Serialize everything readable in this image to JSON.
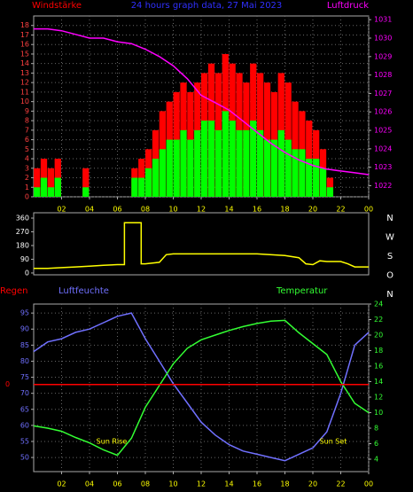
{
  "chart_data": [
    {
      "type": "bar",
      "title": "24 hours graph data, 27 Mai 2023",
      "ylabel": "Windstärke",
      "y2label": "Luftdruck",
      "xlim": [
        0,
        24
      ],
      "xticks": [
        {
          "value": 2,
          "label": "02"
        },
        {
          "value": 4,
          "label": "04"
        },
        {
          "value": 6,
          "label": "06"
        },
        {
          "value": 8,
          "label": "08"
        },
        10,
        12,
        14,
        16,
        18,
        20,
        22,
        {
          "value": 24,
          "label": "00"
        }
      ],
      "ylim": [
        0,
        19
      ],
      "yticks": [
        0,
        1,
        2,
        3,
        4,
        5,
        6,
        7,
        8,
        9,
        10,
        11,
        12,
        13,
        14,
        15,
        16,
        17,
        18
      ],
      "y2lim": [
        1021.4,
        1031.2
      ],
      "y2ticks": [
        1022,
        1023,
        1024,
        1025,
        1026,
        1027,
        1028,
        1029,
        1030,
        1031
      ],
      "grid": true,
      "series": [
        {
          "color": "#ff0000",
          "x": [
            0,
            0.5,
            1,
            1.5,
            2,
            2.5,
            3,
            3.5,
            4,
            4.5,
            5,
            5.5,
            6,
            6.5,
            7,
            7.5,
            8,
            8.5,
            9,
            9.5,
            10,
            10.5,
            11,
            11.5,
            12,
            12.5,
            13,
            13.5,
            14,
            14.5,
            15,
            15.5,
            16,
            16.5,
            17,
            17.5,
            18,
            18.5,
            19,
            19.5,
            20,
            20.5,
            21,
            21.5,
            22,
            22.5,
            23,
            23.5
          ],
          "values": [
            3,
            4,
            3,
            4,
            0,
            0,
            0,
            3,
            0,
            0,
            0,
            0,
            0,
            0,
            3,
            4,
            5,
            7,
            9,
            10,
            11,
            12,
            11,
            12,
            13,
            14,
            13,
            15,
            14,
            13,
            12,
            14,
            13,
            12,
            11,
            13,
            12,
            10,
            9,
            8,
            7,
            5,
            2,
            0,
            0,
            0,
            0,
            0
          ]
        },
        {
          "color": "#00ff00",
          "x": [
            0,
            0.5,
            1,
            1.5,
            2,
            2.5,
            3,
            3.5,
            4,
            4.5,
            5,
            5.5,
            6,
            6.5,
            7,
            7.5,
            8,
            8.5,
            9,
            9.5,
            10,
            10.5,
            11,
            11.5,
            12,
            12.5,
            13,
            13.5,
            14,
            14.5,
            15,
            15.5,
            16,
            16.5,
            17,
            17.5,
            18,
            18.5,
            19,
            19.5,
            20,
            20.5,
            21,
            21.5,
            22,
            22.5,
            23,
            23.5
          ],
          "values": [
            1,
            2,
            1,
            2,
            0,
            0,
            0,
            1,
            0,
            0,
            0,
            0,
            0,
            0,
            2,
            2,
            3,
            4,
            5,
            6,
            6,
            7,
            6,
            7,
            8,
            8,
            7,
            9,
            8,
            7,
            7,
            8,
            7,
            6,
            6,
            7,
            6,
            5,
            5,
            4,
            4,
            3,
            1,
            0,
            0,
            0,
            0,
            0
          ]
        },
        {
          "type": "line",
          "axis": "y2",
          "color": "#ff00ff",
          "x": [
            0,
            1,
            2,
            3,
            4,
            5,
            6,
            7,
            8,
            9,
            10,
            11,
            12,
            13,
            14,
            15,
            16,
            17,
            18,
            19,
            20,
            21,
            22,
            23,
            24
          ],
          "values": [
            1030.5,
            1030.5,
            1030.4,
            1030.2,
            1030.0,
            1030.0,
            1029.8,
            1029.7,
            1029.4,
            1029.0,
            1028.5,
            1027.8,
            1026.9,
            1026.5,
            1026.1,
            1025.5,
            1024.9,
            1024.3,
            1023.8,
            1023.4,
            1023.1,
            1022.9,
            1022.8,
            1022.7,
            1022.6
          ]
        }
      ]
    },
    {
      "type": "line",
      "xlim": [
        0,
        24
      ],
      "ylim": [
        -12,
        395
      ],
      "yticks": [
        0,
        90,
        180,
        270,
        360
      ],
      "y2labels": [
        "N",
        "W",
        "S",
        "O",
        "N"
      ],
      "grid": false,
      "series": [
        {
          "color": "#ffff00",
          "x": [
            0,
            1,
            2,
            3,
            4,
            5,
            6,
            6.5,
            6.5,
            7.7,
            7.7,
            8,
            9,
            9.5,
            10,
            12,
            16,
            18,
            19,
            19.5,
            20,
            20.5,
            21,
            22,
            22.5,
            23,
            24
          ],
          "values": [
            30,
            30,
            35,
            40,
            45,
            50,
            55,
            55,
            330,
            330,
            60,
            60,
            70,
            120,
            125,
            125,
            125,
            115,
            100,
            60,
            55,
            80,
            75,
            75,
            60,
            40,
            40
          ]
        }
      ]
    },
    {
      "type": "line",
      "ylabel": "Luftfeuchte",
      "y2label": "Temperatur",
      "y3label": "Regen",
      "xlim": [
        0,
        24
      ],
      "xticks": [
        {
          "value": 2,
          "label": "02"
        },
        {
          "value": 4,
          "label": "04"
        },
        {
          "value": 6,
          "label": "06"
        },
        {
          "value": 8,
          "label": "08"
        },
        10,
        12,
        14,
        16,
        18,
        20,
        22,
        {
          "value": 24,
          "label": "00"
        }
      ],
      "ylim": [
        45.6,
        97.8
      ],
      "yticks": [
        50,
        55,
        60,
        65,
        70,
        75,
        80,
        85,
        90,
        95
      ],
      "y2lim": [
        2.4,
        24
      ],
      "y2ticks": [
        4,
        6,
        8,
        10,
        12,
        14,
        16,
        18,
        20,
        22,
        24
      ],
      "y3lim": [
        -5.2,
        4.8
      ],
      "y3ticks": [
        0
      ],
      "grid": true,
      "annotations": [
        "Sun Rise",
        "Sun Set"
      ],
      "series": [
        {
          "color": "#7070ff",
          "axis": "y",
          "x": [
            0,
            1,
            2,
            3,
            4,
            5,
            6,
            7,
            8,
            9,
            10,
            11,
            12,
            13,
            14,
            15,
            16,
            17,
            18,
            19,
            20,
            21,
            22,
            23,
            24
          ],
          "values": [
            83,
            86,
            87,
            89,
            90,
            92,
            94,
            95,
            87,
            80,
            73,
            67,
            61,
            57,
            54,
            52,
            51,
            50,
            49,
            51,
            53,
            58,
            70,
            85,
            89
          ]
        },
        {
          "color": "#33ff33",
          "axis": "y2",
          "x": [
            0,
            1,
            2,
            3,
            4,
            5,
            6,
            7,
            8,
            9,
            10,
            11,
            12,
            13,
            14,
            15,
            16,
            17,
            18,
            19,
            20,
            21,
            22,
            23,
            24
          ],
          "values": [
            8.3,
            8.0,
            7.6,
            6.8,
            6.1,
            5.2,
            4.5,
            6.7,
            10.7,
            13.5,
            16.3,
            18.3,
            19.4,
            20.0,
            20.6,
            21.1,
            21.5,
            21.8,
            21.9,
            20.3,
            18.9,
            17.5,
            14.0,
            11.2,
            10.0
          ]
        },
        {
          "color": "#ff0000",
          "axis": "y3",
          "x": [
            0,
            24
          ],
          "values": [
            0,
            0
          ]
        }
      ]
    }
  ]
}
